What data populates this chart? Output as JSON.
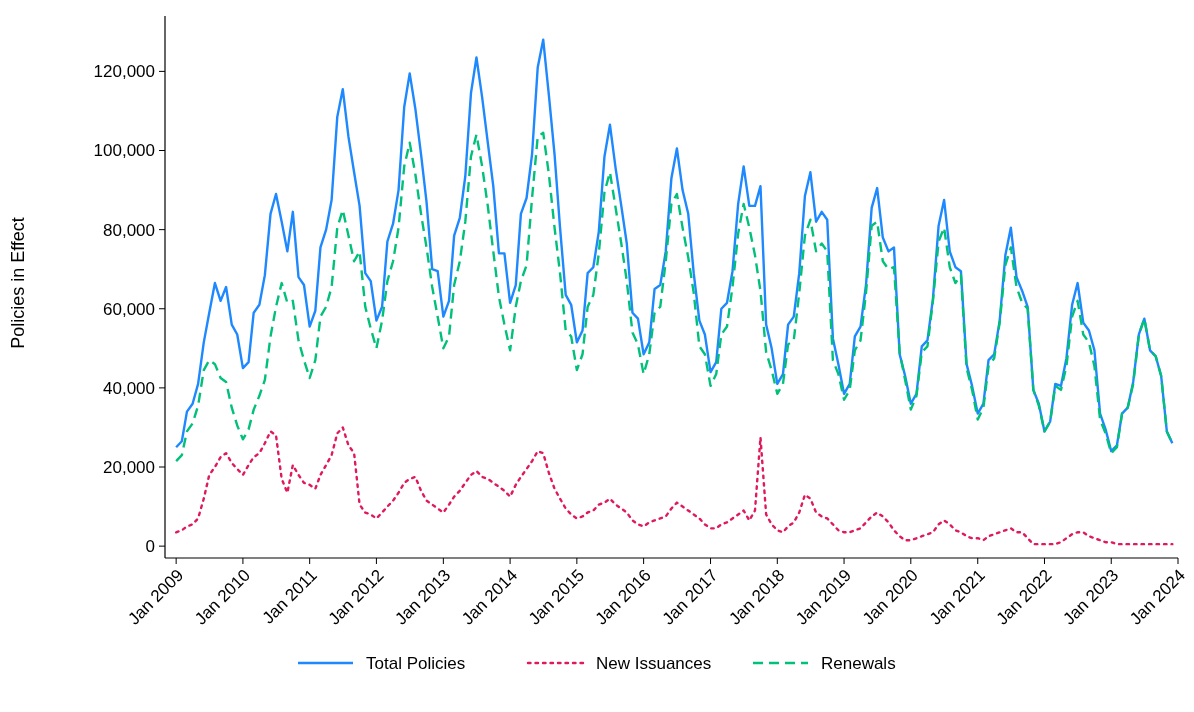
{
  "chart_data": {
    "type": "line",
    "ylabel": "Policies in Effect",
    "legend": "bottom",
    "grid": false,
    "x": [
      "2009-01",
      "2009-02",
      "2009-03",
      "2009-04",
      "2009-05",
      "2009-06",
      "2009-07",
      "2009-08",
      "2009-09",
      "2009-10",
      "2009-11",
      "2009-12",
      "2010-01",
      "2010-02",
      "2010-03",
      "2010-04",
      "2010-05",
      "2010-06",
      "2010-07",
      "2010-08",
      "2010-09",
      "2010-10",
      "2010-11",
      "2010-12",
      "2011-01",
      "2011-02",
      "2011-03",
      "2011-04",
      "2011-05",
      "2011-06",
      "2011-07",
      "2011-08",
      "2011-09",
      "2011-10",
      "2011-11",
      "2011-12",
      "2012-01",
      "2012-02",
      "2012-03",
      "2012-04",
      "2012-05",
      "2012-06",
      "2012-07",
      "2012-08",
      "2012-09",
      "2012-10",
      "2012-11",
      "2012-12",
      "2013-01",
      "2013-02",
      "2013-03",
      "2013-04",
      "2013-05",
      "2013-06",
      "2013-07",
      "2013-08",
      "2013-09",
      "2013-10",
      "2013-11",
      "2013-12",
      "2014-01",
      "2014-02",
      "2014-03",
      "2014-04",
      "2014-05",
      "2014-06",
      "2014-07",
      "2014-08",
      "2014-09",
      "2014-10",
      "2014-11",
      "2014-12",
      "2015-01",
      "2015-02",
      "2015-03",
      "2015-04",
      "2015-05",
      "2015-06",
      "2015-07",
      "2015-08",
      "2015-09",
      "2015-10",
      "2015-11",
      "2015-12",
      "2016-01",
      "2016-02",
      "2016-03",
      "2016-04",
      "2016-05",
      "2016-06",
      "2016-07",
      "2016-08",
      "2016-09",
      "2016-10",
      "2016-11",
      "2016-12",
      "2017-01",
      "2017-02",
      "2017-03",
      "2017-04",
      "2017-05",
      "2017-06",
      "2017-07",
      "2017-08",
      "2017-09",
      "2017-10",
      "2017-11",
      "2017-12",
      "2018-01",
      "2018-02",
      "2018-03",
      "2018-04",
      "2018-05",
      "2018-06",
      "2018-07",
      "2018-08",
      "2018-09",
      "2018-10",
      "2018-11",
      "2018-12",
      "2019-01",
      "2019-02",
      "2019-03",
      "2019-04",
      "2019-05",
      "2019-06",
      "2019-07",
      "2019-08",
      "2019-09",
      "2019-10",
      "2019-11",
      "2019-12",
      "2020-01",
      "2020-02",
      "2020-03",
      "2020-04",
      "2020-05",
      "2020-06",
      "2020-07",
      "2020-08",
      "2020-09",
      "2020-10",
      "2020-11",
      "2020-12",
      "2021-01",
      "2021-02",
      "2021-03",
      "2021-04",
      "2021-05",
      "2021-06",
      "2021-07",
      "2021-08",
      "2021-09",
      "2021-10",
      "2021-11",
      "2021-12",
      "2022-01",
      "2022-02",
      "2022-03",
      "2022-04",
      "2022-05",
      "2022-06",
      "2022-07",
      "2022-08",
      "2022-09",
      "2022-10",
      "2022-11",
      "2022-12",
      "2023-01",
      "2023-02",
      "2023-03",
      "2023-04",
      "2023-05",
      "2023-06",
      "2023-07",
      "2023-08",
      "2023-09",
      "2023-10",
      "2023-11",
      "2023-12"
    ],
    "xlim": [
      "2008-11",
      "2024-01"
    ],
    "xticks": [
      {
        "value": "2009-01",
        "label": "Jan 2009"
      },
      {
        "value": "2010-01",
        "label": "Jan 2010"
      },
      {
        "value": "2011-01",
        "label": "Jan 2011"
      },
      {
        "value": "2012-01",
        "label": "Jan 2012"
      },
      {
        "value": "2013-01",
        "label": "Jan 2013"
      },
      {
        "value": "2014-01",
        "label": "Jan 2014"
      },
      {
        "value": "2015-01",
        "label": "Jan 2015"
      },
      {
        "value": "2016-01",
        "label": "Jan 2016"
      },
      {
        "value": "2017-01",
        "label": "Jan 2017"
      },
      {
        "value": "2018-01",
        "label": "Jan 2018"
      },
      {
        "value": "2019-01",
        "label": "Jan 2019"
      },
      {
        "value": "2020-01",
        "label": "Jan 2020"
      },
      {
        "value": "2021-01",
        "label": "Jan 2021"
      },
      {
        "value": "2022-01",
        "label": "Jan 2022"
      },
      {
        "value": "2023-01",
        "label": "Jan 2023"
      },
      {
        "value": "2024-01",
        "label": "Jan 2024"
      }
    ],
    "ylim": [
      -3000,
      134000
    ],
    "yticks": [
      0,
      {
        "value": 20000,
        "label": "20,000"
      },
      {
        "value": 40000,
        "label": "40,000"
      },
      {
        "value": 60000,
        "label": "60,000"
      },
      {
        "value": 80000,
        "label": "80,000"
      },
      {
        "value": 100000,
        "label": "100,000"
      },
      {
        "value": 120000,
        "label": "120,000"
      }
    ],
    "series": [
      {
        "name": "Total Policies",
        "color": "#1e88ff",
        "line_style": "solid",
        "values": [
          25000,
          26500,
          34000,
          36000,
          41000,
          51500,
          59000,
          66500,
          62000,
          65500,
          56000,
          53500,
          45000,
          46500,
          59000,
          61000,
          68500,
          84000,
          89000,
          82000,
          74500,
          84500,
          68000,
          66000,
          55500,
          59500,
          75500,
          80000,
          87500,
          108500,
          115500,
          103500,
          94500,
          86000,
          69000,
          67000,
          57000,
          60500,
          77000,
          81500,
          90000,
          111000,
          119500,
          110500,
          99000,
          87000,
          70000,
          69500,
          58000,
          62000,
          78500,
          83000,
          93500,
          114500,
          123500,
          113500,
          102000,
          91000,
          74000,
          74000,
          61500,
          66000,
          84000,
          88000,
          99000,
          121000,
          128000,
          114000,
          99000,
          80500,
          63500,
          61000,
          51500,
          54500,
          69000,
          70500,
          79500,
          98500,
          106500,
          95500,
          86000,
          76500,
          59000,
          57500,
          48500,
          51500,
          65000,
          66000,
          74500,
          93000,
          100500,
          90000,
          84000,
          69000,
          57000,
          53500,
          44000,
          46500,
          60000,
          61500,
          69500,
          86500,
          96000,
          86000,
          86000,
          91000,
          56000,
          50000,
          41000,
          43500,
          56000,
          58000,
          69000,
          88500,
          94500,
          82000,
          84500,
          82500,
          52500,
          46000,
          38500,
          41000,
          53000,
          55500,
          66000,
          85500,
          90500,
          78000,
          74500,
          75500,
          48500,
          43000,
          36000,
          38500,
          50500,
          52000,
          62500,
          81000,
          87500,
          74500,
          70500,
          69500,
          46000,
          40500,
          33500,
          36000,
          47000,
          48500,
          57000,
          73500,
          80500,
          68000,
          64500,
          60500,
          39500,
          36000,
          29000,
          31500,
          41000,
          40500,
          47500,
          61000,
          66500,
          56500,
          54500,
          49500,
          33500,
          29500,
          24000,
          25500,
          33500,
          35000,
          41500,
          53500,
          57500,
          49500,
          48000,
          43000,
          29000,
          26000
        ]
      },
      {
        "name": "New Issuances",
        "color": "#e0195a",
        "line_style": "dotted",
        "values": [
          3500,
          4000,
          5000,
          5500,
          7000,
          12000,
          18000,
          20000,
          22500,
          23500,
          21000,
          19500,
          18000,
          20500,
          22500,
          23500,
          26000,
          29000,
          28000,
          17000,
          13500,
          20500,
          18000,
          16000,
          15500,
          14500,
          18000,
          20500,
          23000,
          28500,
          30000,
          25500,
          23500,
          10500,
          8500,
          8000,
          7000,
          8500,
          10000,
          11500,
          13500,
          16000,
          17000,
          17500,
          14000,
          11500,
          10500,
          9500,
          8500,
          10500,
          12500,
          14000,
          16000,
          18000,
          19000,
          17500,
          17000,
          16000,
          15000,
          14000,
          12500,
          15500,
          17500,
          19500,
          21500,
          24000,
          23500,
          18500,
          14500,
          12000,
          9500,
          8000,
          7000,
          7500,
          8500,
          9000,
          10500,
          11000,
          12000,
          10500,
          9500,
          8500,
          6500,
          5500,
          5000,
          6000,
          6500,
          7000,
          7500,
          9500,
          11000,
          10000,
          9000,
          8000,
          7000,
          5500,
          4500,
          4500,
          5500,
          6000,
          7000,
          8000,
          9000,
          6500,
          9000,
          27500,
          8000,
          5500,
          4000,
          3500,
          5000,
          6000,
          8500,
          13000,
          12000,
          8500,
          7500,
          7000,
          5500,
          4000,
          3500,
          3500,
          4000,
          4500,
          6000,
          7500,
          8500,
          7500,
          6000,
          4000,
          2500,
          1500,
          1500,
          2000,
          2500,
          3000,
          3500,
          5500,
          6500,
          5500,
          4000,
          3500,
          2500,
          2000,
          2000,
          1500,
          2500,
          3000,
          3500,
          4000,
          4500,
          3500,
          3500,
          2000,
          500,
          500,
          500,
          500,
          500,
          1000,
          2000,
          3000,
          3500,
          3500,
          2500,
          2000,
          1500,
          1000,
          1000,
          500,
          500,
          500,
          500,
          500,
          500,
          500,
          500,
          500,
          500,
          500
        ]
      },
      {
        "name": "Renewals",
        "color": "#00c07a",
        "line_style": "dashed",
        "values": [
          21500,
          23000,
          29000,
          31000,
          35500,
          44500,
          47000,
          46000,
          42500,
          41500,
          35000,
          30500,
          27000,
          29500,
          34500,
          38000,
          42000,
          53000,
          60500,
          66500,
          61500,
          62000,
          52000,
          47000,
          42500,
          47000,
          58000,
          60500,
          65500,
          80500,
          85000,
          78500,
          72000,
          74500,
          60500,
          55000,
          50000,
          57000,
          67000,
          72000,
          80500,
          96000,
          102000,
          94000,
          84000,
          75500,
          65500,
          58000,
          50000,
          53000,
          66000,
          72000,
          82000,
          98500,
          104000,
          96000,
          86000,
          74500,
          63000,
          56000,
          49500,
          60500,
          67000,
          71000,
          88000,
          103500,
          104500,
          94000,
          80500,
          69000,
          54500,
          53000,
          44500,
          48500,
          60500,
          63500,
          74000,
          89500,
          94500,
          85500,
          76500,
          67000,
          54000,
          51000,
          43500,
          48500,
          59000,
          60500,
          72000,
          86500,
          89000,
          80500,
          73000,
          64000,
          50500,
          48500,
          40500,
          43500,
          53500,
          55500,
          65500,
          79000,
          86500,
          80500,
          73500,
          64500,
          49000,
          44500,
          38500,
          41000,
          51000,
          52000,
          64000,
          78500,
          82500,
          74500,
          76500,
          74500,
          47000,
          43500,
          37000,
          39500,
          49500,
          52000,
          64000,
          81000,
          82000,
          72000,
          70000,
          70500,
          49000,
          42000,
          34500,
          38000,
          49000,
          50500,
          62000,
          77000,
          80500,
          70500,
          66500,
          68500,
          45000,
          39500,
          32000,
          35000,
          45500,
          47500,
          56500,
          71000,
          75500,
          65500,
          61500,
          60000,
          39500,
          35500,
          29000,
          31500,
          40500,
          39500,
          45500,
          58000,
          62000,
          53500,
          51500,
          45500,
          32000,
          28500,
          23500,
          25000,
          33500,
          35000,
          41000,
          53500,
          57500,
          49500,
          48000,
          43000,
          29000,
          26000
        ]
      }
    ]
  }
}
